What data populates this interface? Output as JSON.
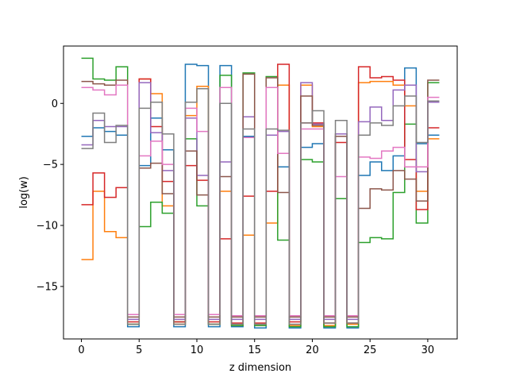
{
  "chart_data": {
    "type": "line",
    "drawstyle": "steps-post",
    "title": "",
    "xlabel": "z dimension",
    "ylabel": "log(w)",
    "xlim": [
      -1.55,
      32.55
    ],
    "ylim": [
      -19.3,
      4.7
    ],
    "xticks": [
      0,
      5,
      10,
      15,
      20,
      25,
      30
    ],
    "yticks": [
      -15,
      -10,
      -5,
      0
    ],
    "x": [
      0,
      1,
      2,
      3,
      4,
      5,
      6,
      7,
      8,
      9,
      10,
      11,
      12,
      13,
      14,
      15,
      16,
      17,
      18,
      19,
      20,
      21,
      22,
      23,
      24,
      25,
      26,
      27,
      28,
      29,
      30,
      31
    ],
    "series": [
      {
        "color": "#1f77b4",
        "values": [
          -2.7,
          -2.0,
          -2.3,
          -2.6,
          -18.3,
          -5.1,
          -1.2,
          -3.8,
          -18.3,
          3.2,
          3.1,
          -18.3,
          3.1,
          -18.3,
          -2.7,
          -18.4,
          -2.6,
          -5.2,
          -18.4,
          -3.6,
          -3.3,
          -18.4,
          -2.7,
          -18.4,
          -5.9,
          -4.8,
          -5.5,
          -4.3,
          2.9,
          -3.3,
          -2.6,
          -2.6
        ]
      },
      {
        "color": "#ff7f0e",
        "values": [
          -12.8,
          -7.2,
          -10.5,
          -11.0,
          -18.1,
          2.0,
          0.8,
          -8.4,
          -18.1,
          -1.0,
          1.4,
          -18.1,
          -7.2,
          -18.2,
          -10.8,
          -18.2,
          -9.8,
          1.5,
          -18.2,
          1.5,
          -1.9,
          -18.2,
          -2.5,
          -18.1,
          1.7,
          1.8,
          1.8,
          1.5,
          -0.2,
          -7.2,
          -2.9,
          -2.9
        ]
      },
      {
        "color": "#2ca02c",
        "values": [
          3.7,
          2.0,
          1.9,
          3.0,
          -18.1,
          -10.1,
          -8.1,
          -9.0,
          -17.9,
          -2.9,
          -8.4,
          -18.1,
          2.3,
          -18.2,
          2.5,
          -18.2,
          2.2,
          -11.2,
          -18.3,
          -4.6,
          -4.8,
          -18.3,
          -7.8,
          -18.3,
          -11.4,
          -11.0,
          -11.1,
          -7.3,
          -1.7,
          -9.8,
          1.7,
          1.7
        ]
      },
      {
        "color": "#d62728",
        "values": [
          -8.3,
          -5.7,
          -7.7,
          -6.9,
          -17.9,
          2.0,
          -1.9,
          -6.4,
          -17.9,
          -5.1,
          -6.3,
          -17.9,
          -11.1,
          -18.0,
          -7.6,
          -18.0,
          -7.2,
          3.2,
          -17.9,
          -1.6,
          -1.6,
          -18.0,
          -3.2,
          -18.0,
          3.0,
          2.1,
          2.2,
          1.9,
          -4.6,
          -8.7,
          -2.0,
          -2.0
        ]
      },
      {
        "color": "#9467bd",
        "values": [
          -3.4,
          -1.4,
          -1.9,
          -1.9,
          -17.7,
          1.7,
          -2.4,
          -5.5,
          -17.7,
          -1.2,
          -5.9,
          -17.7,
          -4.8,
          -17.7,
          -1.1,
          -17.7,
          -2.6,
          -2.3,
          -17.7,
          1.7,
          -1.7,
          -17.7,
          -2.5,
          -17.7,
          -1.5,
          -0.3,
          -1.4,
          1.1,
          1.5,
          -5.6,
          0.1,
          0.1
        ]
      },
      {
        "color": "#8c564b",
        "values": [
          1.8,
          1.6,
          1.5,
          1.9,
          -17.5,
          -5.3,
          -4.9,
          -7.4,
          -17.5,
          -3.9,
          -7.5,
          -17.5,
          -6.0,
          -17.5,
          2.4,
          -17.5,
          2.1,
          -7.3,
          -17.5,
          0.6,
          -1.8,
          -17.5,
          -2.7,
          -17.5,
          -8.6,
          -7.0,
          -7.1,
          -5.5,
          -6.2,
          -8.0,
          1.9,
          1.9
        ]
      },
      {
        "color": "#e377c2",
        "values": [
          1.3,
          1.1,
          0.7,
          1.5,
          -17.3,
          -4.3,
          -3.1,
          -5.0,
          -17.3,
          -0.4,
          -2.3,
          -17.3,
          1.3,
          -17.4,
          -2.8,
          -17.4,
          1.3,
          -4.1,
          -17.4,
          -2.1,
          -2.1,
          -17.4,
          -6.0,
          -17.4,
          -4.4,
          -4.5,
          -3.9,
          -3.6,
          -5.2,
          -5.2,
          0.5,
          0.5
        ]
      },
      {
        "color": "#7f7f7f",
        "values": [
          -3.7,
          -0.8,
          -3.2,
          -1.8,
          -18.1,
          -0.4,
          0.1,
          -2.5,
          -18.1,
          0.1,
          1.2,
          -18.1,
          0.0,
          -18.1,
          -2.1,
          -18.1,
          -2.1,
          -2.2,
          -18.1,
          -1.6,
          -0.6,
          -18.0,
          -1.4,
          -18.0,
          -2.6,
          -1.6,
          -1.8,
          -0.2,
          0.6,
          -3.2,
          0.2,
          0.2
        ]
      }
    ]
  }
}
